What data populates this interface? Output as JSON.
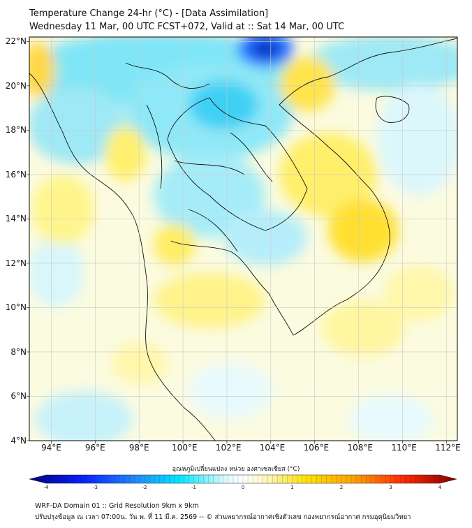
{
  "title": {
    "line1": "Temperature Change 24-hr (°C) - [Data Assimilation]",
    "line2": "Wednesday 11 Mar, 00 UTC FCST+072, Valid at :: Sat 14 Mar, 00 UTC"
  },
  "map": {
    "lat_labels": [
      "22°N",
      "20°N",
      "18°N",
      "16°N",
      "14°N",
      "12°N",
      "10°N",
      "8°N",
      "6°N",
      "4°N"
    ],
    "lon_labels": [
      "94°E",
      "96°E",
      "98°E",
      "100°E",
      "102°E",
      "104°E",
      "106°E",
      "108°E",
      "110°E",
      "112°E"
    ],
    "lat_values": [
      22,
      20,
      18,
      16,
      14,
      12,
      10,
      8,
      6,
      4
    ],
    "lon_values": [
      94,
      96,
      98,
      100,
      102,
      104,
      106,
      108,
      110,
      112
    ],
    "extent": {
      "lon_min": 93.0,
      "lon_max": 112.5,
      "lat_min": 4.0,
      "lat_max": 22.2
    }
  },
  "colorbar": {
    "title": "อุณหภูมิเปลี่ยนแปลง หน่วย องศาเซลเซียส (°C)",
    "ticks": [
      "-4",
      "-3",
      "-2",
      "-1",
      "0",
      "1",
      "2",
      "3",
      "4"
    ],
    "range": [
      -4,
      4
    ]
  },
  "footer": {
    "line1": "WRF-DA Domain 01 :: Grid Resolution 9km x 9km",
    "line2": "ปรับปรุงข้อมูล ณ เวลา 07:00น. วัน พ. ที่ 11 มี.ค. 2569 -- © ส่วนพยากรณ์อากาศเชิงตัวเลข กองพยากรณ์อากาศ กรมอุตุนิยมวิทยา"
  },
  "colors": {
    "cold_extreme": "#00008b",
    "cold": "#1e90ff",
    "cool": "#00e5ff",
    "neutral": "#ffffff",
    "warm": "#ffe000",
    "hot": "#ff8c00",
    "hot_extreme": "#8b0000"
  }
}
